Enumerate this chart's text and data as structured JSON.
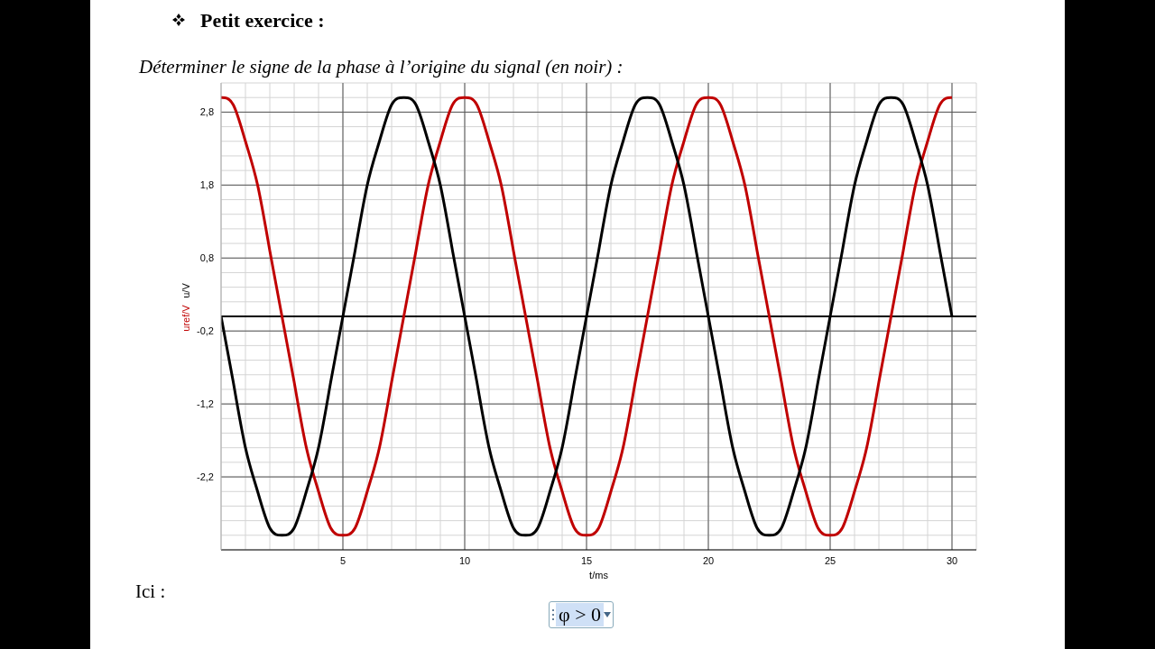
{
  "chart_data": {
    "type": "line",
    "title": "Petit exercice :",
    "subtitle": "Déterminer le signe de la phase à l’origine du signal (en noir) :",
    "xlabel": "t/ms",
    "ylabel": "u/V",
    "annotations": [
      "uref/V",
      "Ici :",
      "φ > 0"
    ],
    "x": [
      0,
      0.5,
      1,
      1.5,
      2,
      2.5,
      3,
      3.5,
      4,
      4.5,
      5,
      5.5,
      6,
      6.5,
      7,
      7.5,
      8,
      8.5,
      9,
      9.5,
      10,
      10.5,
      11,
      11.5,
      12,
      12.5,
      13,
      13.5,
      14,
      14.5,
      15,
      15.5,
      16,
      16.5,
      17,
      17.5,
      18,
      18.5,
      19,
      19.5,
      20,
      20.5,
      21,
      21.5,
      22,
      22.5,
      23,
      23.5,
      24,
      24.5,
      25,
      25.5,
      26,
      26.5,
      27,
      27.5,
      28,
      28.5,
      29,
      29.5,
      30
    ],
    "series": [
      {
        "color": "#c00000",
        "values": [
          3,
          2.9,
          2.4,
          1.8,
          0.9,
          0,
          -0.9,
          -1.8,
          -2.4,
          -2.9,
          -3,
          -2.9,
          -2.4,
          -1.8,
          -0.9,
          0,
          0.9,
          1.8,
          2.4,
          2.9,
          3,
          2.9,
          2.4,
          1.8,
          0.9,
          0,
          -0.9,
          -1.8,
          -2.4,
          -2.9,
          -3,
          -2.9,
          -2.4,
          -1.8,
          -0.9,
          0,
          0.9,
          1.8,
          2.4,
          2.9,
          3,
          2.9,
          2.4,
          1.8,
          0.9,
          0,
          -0.9,
          -1.8,
          -2.4,
          -2.9,
          -3,
          -2.9,
          -2.4,
          -1.8,
          -0.9,
          0,
          0.9,
          1.8,
          2.4,
          2.9,
          3
        ]
      },
      {
        "color": "#000000",
        "values": [
          0,
          -0.9,
          -1.8,
          -2.4,
          -2.9,
          -3,
          -2.9,
          -2.4,
          -1.8,
          -0.9,
          0,
          0.9,
          1.8,
          2.4,
          2.9,
          3,
          2.9,
          2.4,
          1.8,
          0.9,
          0,
          -0.9,
          -1.8,
          -2.4,
          -2.9,
          -3,
          -2.9,
          -2.4,
          -1.8,
          -0.9,
          0,
          0.9,
          1.8,
          2.4,
          2.9,
          3,
          2.9,
          2.4,
          1.8,
          0.9,
          0,
          -0.9,
          -1.8,
          -2.4,
          -2.9,
          -3,
          -2.9,
          -2.4,
          -1.8,
          -0.9,
          0,
          0.9,
          1.8,
          2.4,
          2.9,
          3,
          2.9,
          2.4,
          1.8,
          0.9,
          0
        ]
      }
    ],
    "xlim": [
      0,
      31
    ],
    "xticks": [
      5,
      10,
      15,
      20,
      25,
      30
    ],
    "ylim": [
      -3.2,
      3.2
    ],
    "yticks": [
      {
        "value": 2.8,
        "label": "2,8"
      },
      {
        "value": 1.8,
        "label": "1,8"
      },
      {
        "value": 0.8,
        "label": "0,8"
      },
      {
        "value": -0.2,
        "label": "-0,2"
      },
      {
        "value": -1.2,
        "label": "-1,2"
      },
      {
        "value": -2.2,
        "label": "-2,2"
      }
    ],
    "ref_lines": [
      {
        "axis": "y",
        "value": 0,
        "color": "#000000"
      }
    ],
    "grid": true,
    "marker": "none",
    "line_style": "solid"
  }
}
